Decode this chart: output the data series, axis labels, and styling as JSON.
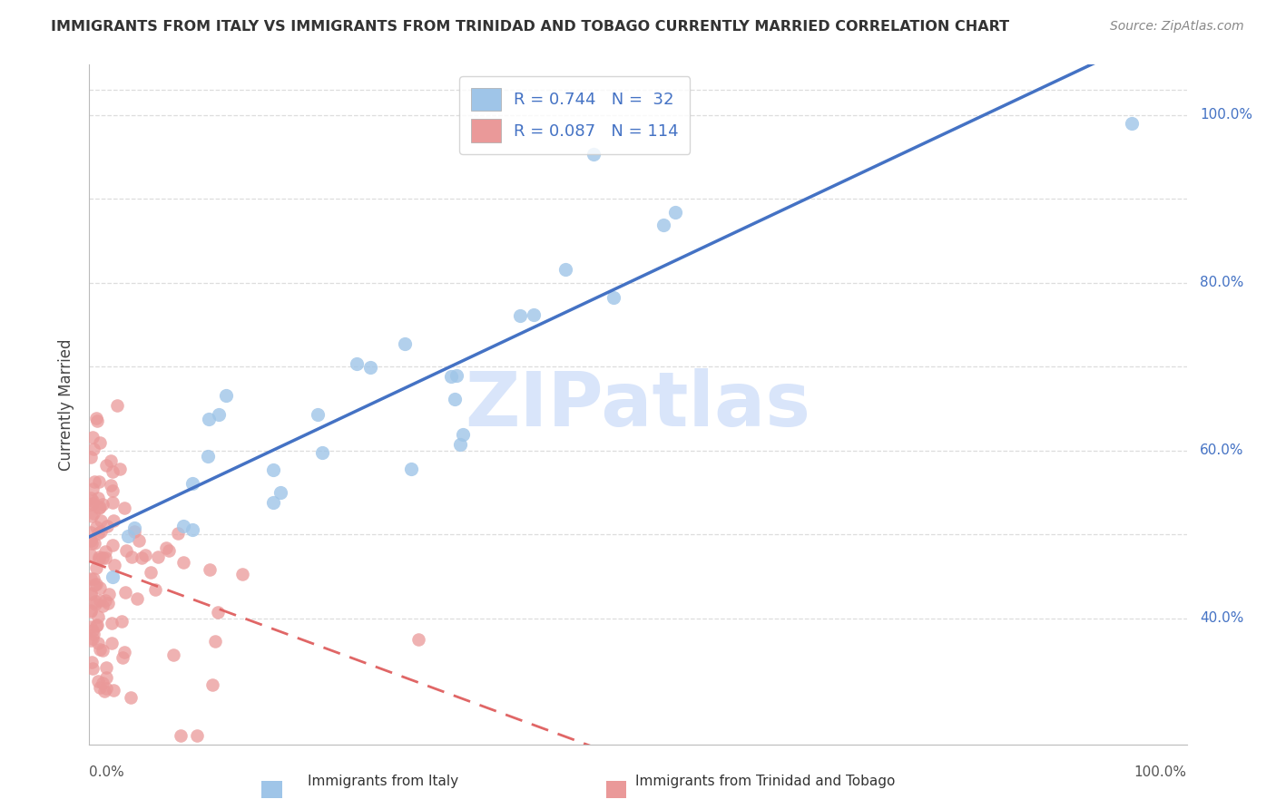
{
  "title": "IMMIGRANTS FROM ITALY VS IMMIGRANTS FROM TRINIDAD AND TOBAGO CURRENTLY MARRIED CORRELATION CHART",
  "source": "Source: ZipAtlas.com",
  "ylabel": "Currently Married",
  "italy_R": 0.744,
  "italy_N": 32,
  "tt_R": 0.087,
  "tt_N": 114,
  "italy_color": "#9fc5e8",
  "tt_color": "#ea9999",
  "italy_line_color": "#4472c4",
  "tt_line_color": "#e06666",
  "watermark_text": "ZIPatlas",
  "watermark_color": "#c9daf8",
  "xmin": 0.0,
  "xmax": 1.0,
  "ymin": 0.25,
  "ymax": 1.06,
  "right_yticks": [
    0.4,
    0.6,
    0.8,
    1.0
  ],
  "right_ytick_labels": [
    "40.0%",
    "60.0%",
    "80.0%",
    "100.0%"
  ],
  "bottom_label_italy": "Immigrants from Italy",
  "bottom_label_tt": "Immigrants from Trinidad and Tobago"
}
